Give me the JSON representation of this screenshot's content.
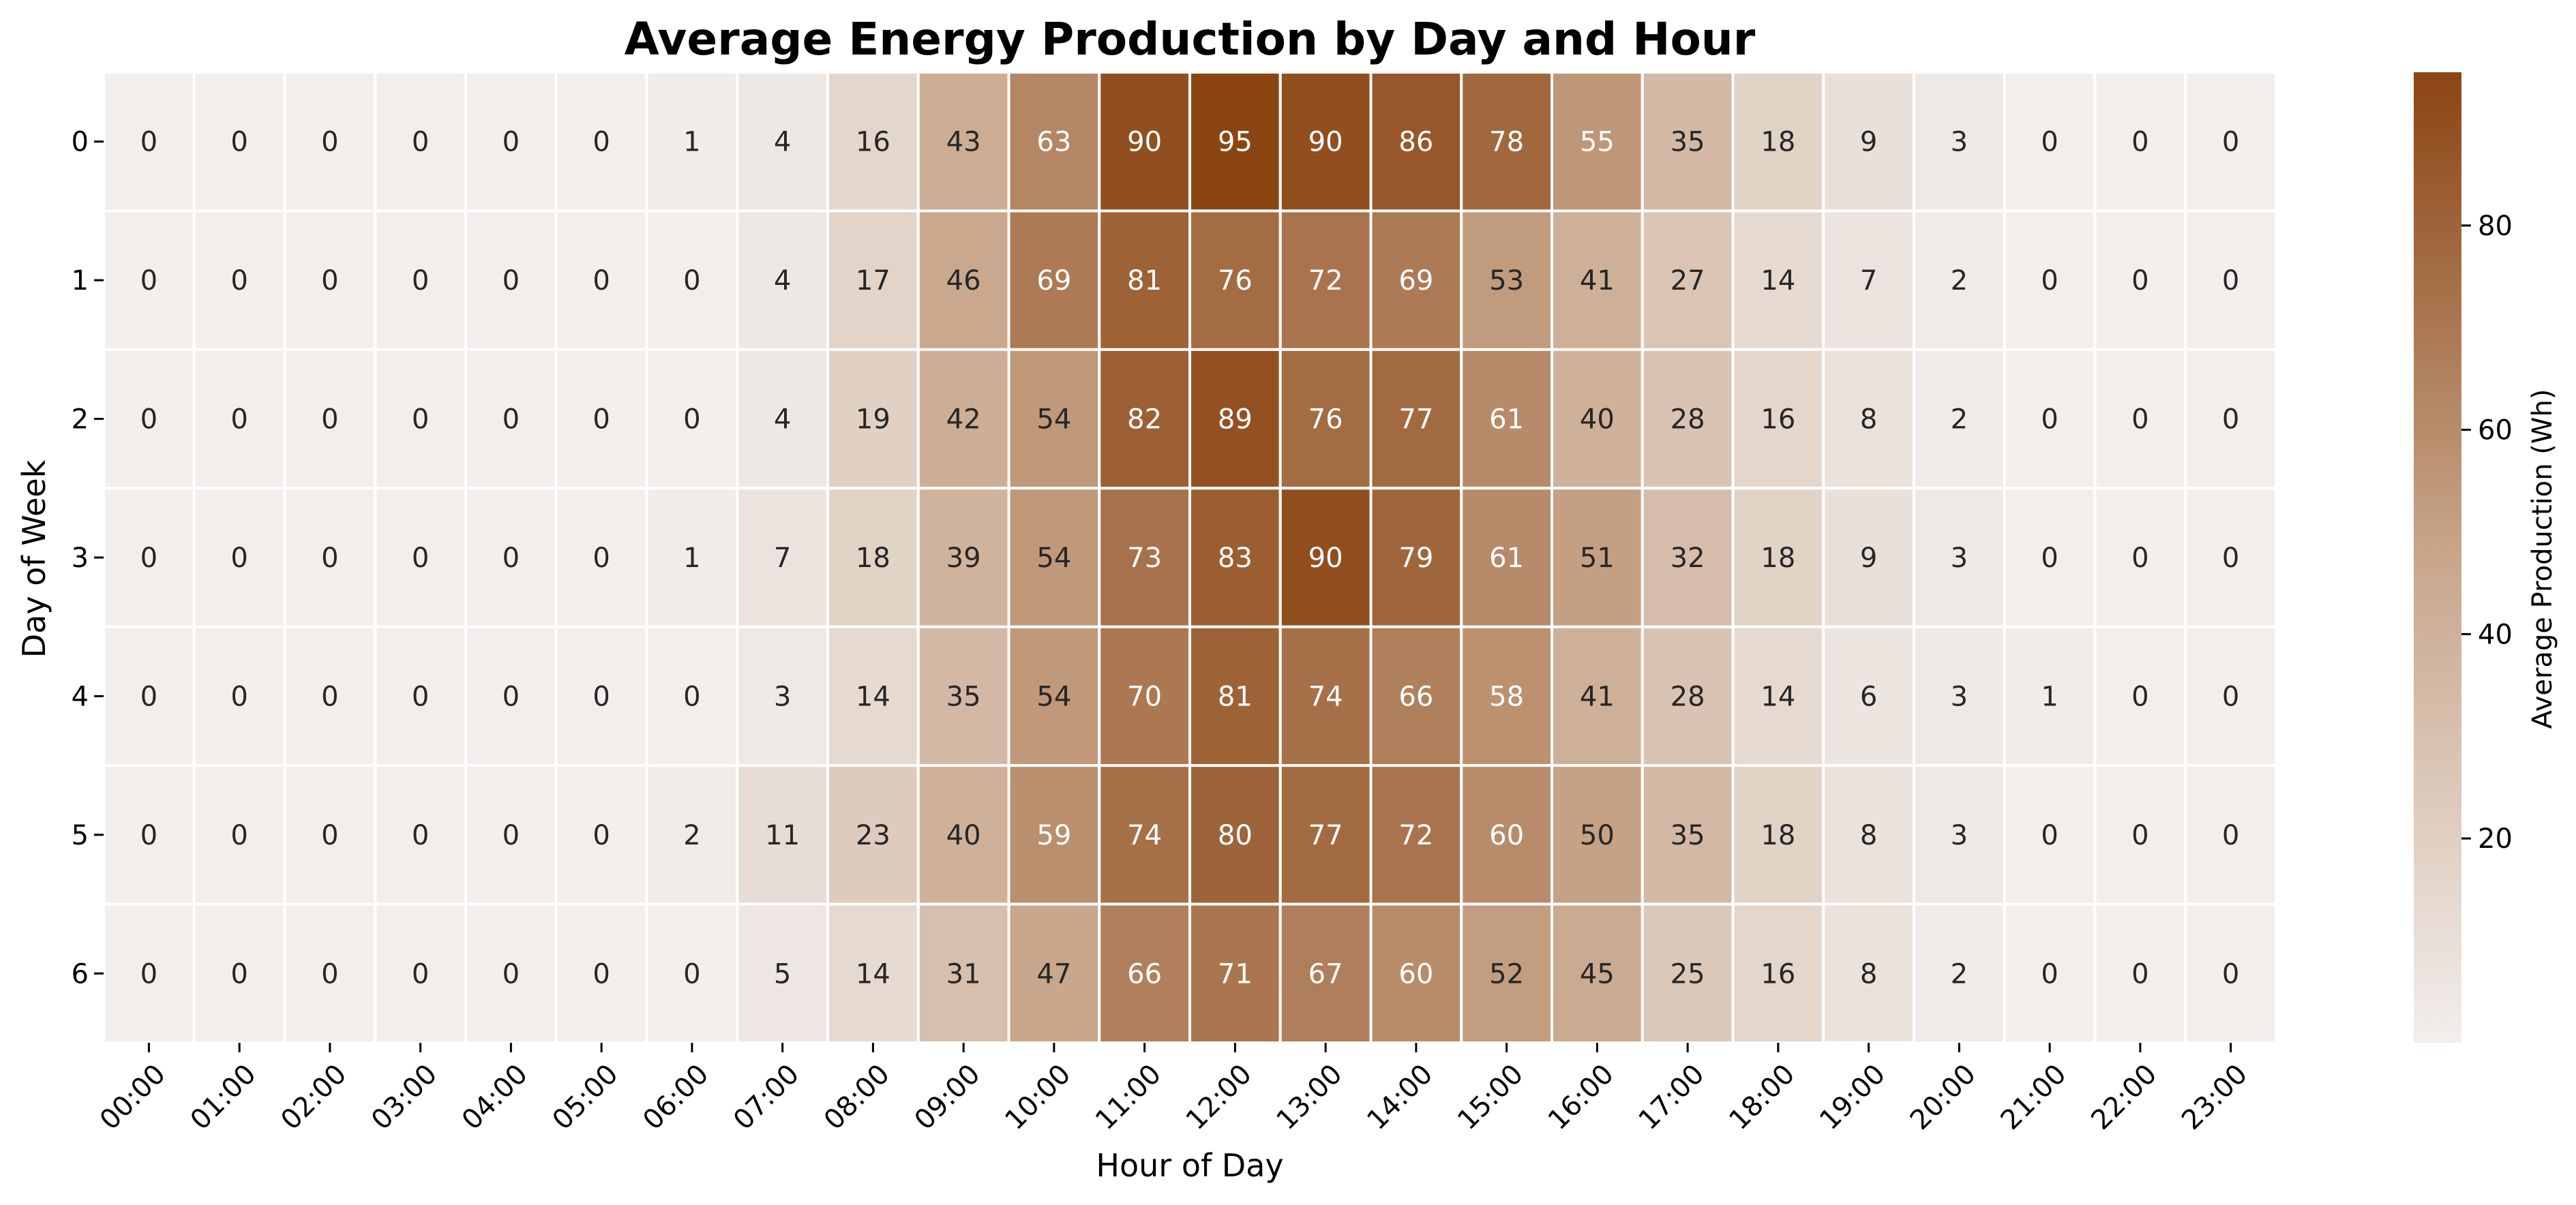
{
  "chart_data": {
    "type": "heatmap",
    "title": "Average Energy Production by Day and Hour",
    "xlabel": "Hour of Day",
    "ylabel": "Day of Week",
    "colorbar_label": "Average Production (Wh)",
    "x": [
      "00:00",
      "01:00",
      "02:00",
      "03:00",
      "04:00",
      "05:00",
      "06:00",
      "07:00",
      "08:00",
      "09:00",
      "10:00",
      "11:00",
      "12:00",
      "13:00",
      "14:00",
      "15:00",
      "16:00",
      "17:00",
      "18:00",
      "19:00",
      "20:00",
      "21:00",
      "22:00",
      "23:00"
    ],
    "y": [
      "0",
      "1",
      "2",
      "3",
      "4",
      "5",
      "6"
    ],
    "values": [
      [
        0,
        0,
        0,
        0,
        0,
        0,
        1,
        4,
        16,
        43,
        63,
        90,
        95,
        90,
        86,
        78,
        55,
        35,
        18,
        9,
        3,
        0,
        0,
        0
      ],
      [
        0,
        0,
        0,
        0,
        0,
        0,
        0,
        4,
        17,
        46,
        69,
        81,
        76,
        72,
        69,
        53,
        41,
        27,
        14,
        7,
        2,
        0,
        0,
        0
      ],
      [
        0,
        0,
        0,
        0,
        0,
        0,
        0,
        4,
        19,
        42,
        54,
        82,
        89,
        76,
        77,
        61,
        40,
        28,
        16,
        8,
        2,
        0,
        0,
        0
      ],
      [
        0,
        0,
        0,
        0,
        0,
        0,
        1,
        7,
        18,
        39,
        54,
        73,
        83,
        90,
        79,
        61,
        51,
        32,
        18,
        9,
        3,
        0,
        0,
        0
      ],
      [
        0,
        0,
        0,
        0,
        0,
        0,
        0,
        3,
        14,
        35,
        54,
        70,
        81,
        74,
        66,
        58,
        41,
        28,
        14,
        6,
        3,
        1,
        0,
        0
      ],
      [
        0,
        0,
        0,
        0,
        0,
        0,
        2,
        11,
        23,
        40,
        59,
        74,
        80,
        77,
        72,
        60,
        50,
        35,
        18,
        8,
        3,
        0,
        0,
        0
      ],
      [
        0,
        0,
        0,
        0,
        0,
        0,
        0,
        5,
        14,
        31,
        47,
        66,
        71,
        67,
        60,
        52,
        45,
        25,
        16,
        8,
        2,
        0,
        0,
        0
      ]
    ],
    "color_range": [
      0,
      95
    ],
    "colorbar_ticks": [
      20,
      40,
      60,
      80
    ],
    "colors": {
      "low": "#f2eeec",
      "mid": "#c8a68b",
      "high": "#8b4513",
      "cell_border": "#ffffff"
    },
    "grid": false,
    "legend": "colorbar-right"
  }
}
